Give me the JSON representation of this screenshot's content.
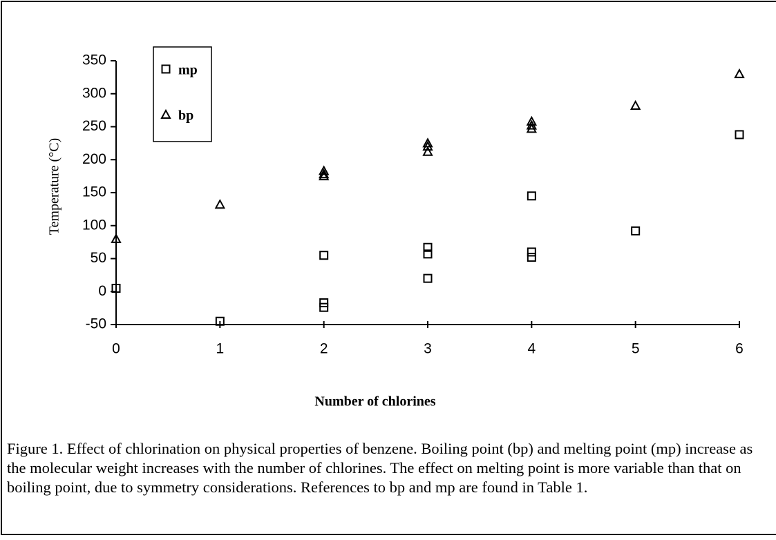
{
  "chart_data": {
    "type": "scatter",
    "xlabel": "Number of chlorines",
    "ylabel": "Temperature (°C)",
    "caption": "Figure 1. Effect of chlorination on physical properties of benzene.  Boiling point (bp) and melting point (mp) increase as the molecular weight increases with the number of chlorines.  The effect on melting point is more variable than that on boiling point, due to symmetry considerations.  References to bp and mp are found in Table 1.",
    "xlim": [
      0,
      6
    ],
    "xticks": [
      0,
      1,
      2,
      3,
      4,
      5,
      6
    ],
    "ylim": [
      -50,
      350
    ],
    "yticks": [
      -50,
      0,
      50,
      100,
      150,
      200,
      250,
      300,
      350
    ],
    "legend": "upper left",
    "series": [
      {
        "name": "mp",
        "marker": "square",
        "color": "#000000",
        "x": [
          0,
          1,
          2,
          2,
          2,
          3,
          3,
          3,
          4,
          4,
          4,
          5,
          6
        ],
        "values": [
          5,
          -45,
          55,
          -17,
          -24,
          67,
          57,
          20,
          145,
          60,
          52,
          92,
          238
        ]
      },
      {
        "name": "bp",
        "marker": "triangle",
        "color": "#000000",
        "x": [
          0,
          1,
          2,
          2,
          2,
          3,
          3,
          3,
          4,
          4,
          4,
          5,
          6
        ],
        "values": [
          80,
          132,
          183,
          178,
          175,
          225,
          220,
          212,
          258,
          252,
          247,
          282,
          330
        ]
      }
    ]
  }
}
